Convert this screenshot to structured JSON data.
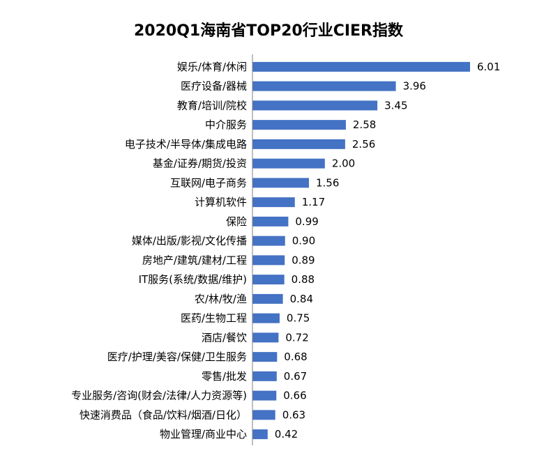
{
  "chart_data": {
    "type": "bar",
    "orientation": "horizontal",
    "title": "2020Q1海南省TOP20行业CIER指数",
    "categories": [
      "娱乐/体育/休闲",
      "医疗设备/器械",
      "教育/培训/院校",
      "中介服务",
      "电子技术/半导体/集成电路",
      "基金/证券/期货/投资",
      "互联网/电子商务",
      "计算机软件",
      "保险",
      "媒体/出版/影视/文化传播",
      "房地产/建筑/建材/工程",
      "IT服务(系统/数据/维护)",
      "农/林/牧/渔",
      "医药/生物工程",
      "酒店/餐饮",
      "医疗/护理/美容/保健/卫生服务",
      "零售/批发",
      "专业服务/咨询(财会/法律/人力资源等)",
      "快速消费品（食品/饮料/烟酒/日化）",
      "物业管理/商业中心"
    ],
    "values": [
      6.01,
      3.96,
      3.45,
      2.58,
      2.56,
      2.0,
      1.56,
      1.17,
      0.99,
      0.9,
      0.89,
      0.88,
      0.84,
      0.75,
      0.72,
      0.68,
      0.67,
      0.66,
      0.63,
      0.42
    ],
    "value_labels": [
      "6.01",
      "3.96",
      "3.45",
      "2.58",
      "2.56",
      "2.00",
      "1.56",
      "1.17",
      "0.99",
      "0.90",
      "0.89",
      "0.88",
      "0.84",
      "0.75",
      "0.72",
      "0.68",
      "0.67",
      "0.66",
      "0.63",
      "0.42"
    ],
    "xlim": [
      0,
      6.5
    ],
    "grid": false,
    "legend": "none",
    "bar_color": "#4472C4",
    "axis_color": "#7f7f7f"
  }
}
